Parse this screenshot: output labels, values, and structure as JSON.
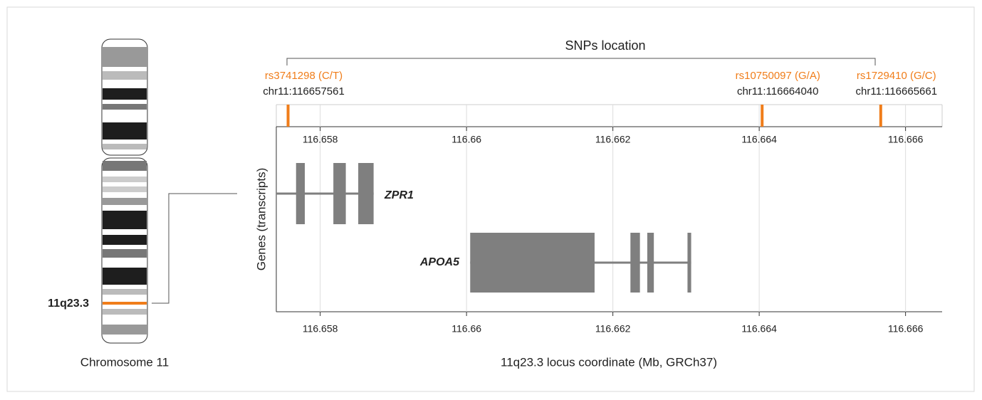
{
  "chart_data": {
    "type": "locus",
    "title": "SNPs location",
    "xlabel": "11q23.3 locus coordinate (Mb, GRCh37)",
    "ylabel": "Genes (transcripts)",
    "xlim": [
      116.6574,
      116.6665
    ],
    "xticks": [
      116.658,
      116.66,
      116.662,
      116.664,
      116.666
    ],
    "grid": true,
    "snp_color": "#f07d1a",
    "gene_color": "#7f7f7f",
    "snps": [
      {
        "name": "rs3741298 (C/T)",
        "position": 116.657561,
        "position_label": "chr11:116657561"
      },
      {
        "name": "rs10750097 (G/A)",
        "position": 116.66404,
        "position_label": "chr11:116664040"
      },
      {
        "name": "rs1729410 (G/C)",
        "position": 116.665661,
        "position_label": "chr11:116665661"
      }
    ],
    "genes": [
      {
        "name": "ZPR1",
        "start": 116.6574,
        "end": 116.65873,
        "exons": [
          [
            116.65767,
            116.65779
          ],
          [
            116.65818,
            116.65835
          ],
          [
            116.65852,
            116.65873
          ]
        ]
      },
      {
        "name": "APOA5",
        "start": 116.66005,
        "end": 116.66307,
        "exons": [
          [
            116.66005,
            116.66175
          ],
          [
            116.66224,
            116.66237
          ],
          [
            116.66247,
            116.66256
          ],
          [
            116.66302,
            116.66307
          ]
        ]
      }
    ],
    "ideogram": {
      "band_label": "11q23.3",
      "caption": "Chromosome 11"
    }
  }
}
